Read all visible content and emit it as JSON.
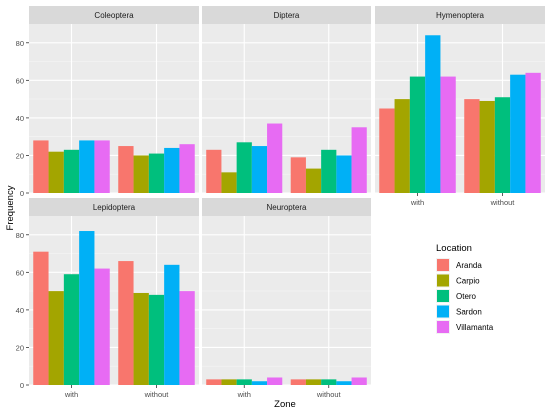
{
  "chart_data": {
    "type": "bar",
    "facet_by": "Order",
    "facets": [
      "Coleoptera",
      "Diptera",
      "Hymenoptera",
      "Lepidoptera",
      "Neuroptera"
    ],
    "categories": [
      "with",
      "without"
    ],
    "xlabel": "Zone",
    "ylabel": "Frequency",
    "ylim": [
      0,
      90
    ],
    "yticks": [
      0,
      20,
      40,
      60,
      80
    ],
    "legend": {
      "title": "Location",
      "placement": "right",
      "entries": [
        "Aranda",
        "Carpio",
        "Otero",
        "Sardon",
        "Villamanta"
      ]
    },
    "grid": true,
    "colors": [
      "#F8766D",
      "#A3A500",
      "#00BF7D",
      "#00B0F6",
      "#E76BF3"
    ],
    "data": {
      "Coleoptera": [
        {
          "name": "Aranda",
          "values": [
            28,
            25
          ]
        },
        {
          "name": "Carpio",
          "values": [
            22,
            20
          ]
        },
        {
          "name": "Otero",
          "values": [
            23,
            21
          ]
        },
        {
          "name": "Sardon",
          "values": [
            28,
            24
          ]
        },
        {
          "name": "Villamanta",
          "values": [
            28,
            26
          ]
        }
      ],
      "Diptera": [
        {
          "name": "Aranda",
          "values": [
            23,
            19
          ]
        },
        {
          "name": "Carpio",
          "values": [
            11,
            13
          ]
        },
        {
          "name": "Otero",
          "values": [
            27,
            23
          ]
        },
        {
          "name": "Sardon",
          "values": [
            25,
            20
          ]
        },
        {
          "name": "Villamanta",
          "values": [
            37,
            35
          ]
        }
      ],
      "Hymenoptera": [
        {
          "name": "Aranda",
          "values": [
            45,
            50
          ]
        },
        {
          "name": "Carpio",
          "values": [
            50,
            49
          ]
        },
        {
          "name": "Otero",
          "values": [
            62,
            51
          ]
        },
        {
          "name": "Sardon",
          "values": [
            84,
            63
          ]
        },
        {
          "name": "Villamanta",
          "values": [
            62,
            64
          ]
        }
      ],
      "Lepidoptera": [
        {
          "name": "Aranda",
          "values": [
            71,
            66
          ]
        },
        {
          "name": "Carpio",
          "values": [
            50,
            49
          ]
        },
        {
          "name": "Otero",
          "values": [
            59,
            48
          ]
        },
        {
          "name": "Sardon",
          "values": [
            82,
            64
          ]
        },
        {
          "name": "Villamanta",
          "values": [
            62,
            50
          ]
        }
      ],
      "Neuroptera": [
        {
          "name": "Aranda",
          "values": [
            3,
            3
          ]
        },
        {
          "name": "Carpio",
          "values": [
            3,
            3
          ]
        },
        {
          "name": "Otero",
          "values": [
            3,
            3
          ]
        },
        {
          "name": "Sardon",
          "values": [
            2,
            2
          ]
        },
        {
          "name": "Villamanta",
          "values": [
            4,
            4
          ]
        }
      ]
    }
  }
}
